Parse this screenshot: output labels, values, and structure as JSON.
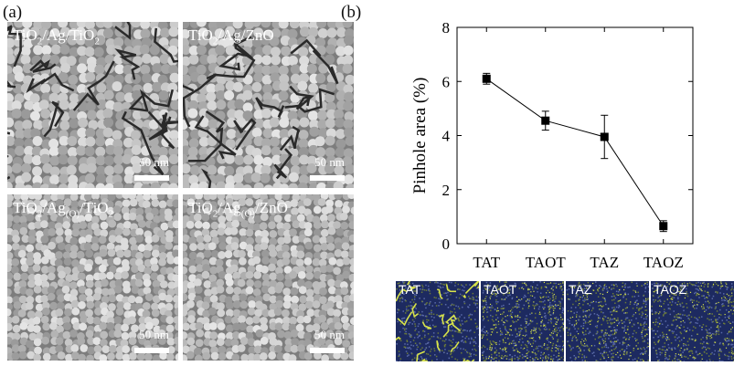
{
  "panels": {
    "a": "(a)",
    "b": "(b)"
  },
  "sem_images": [
    {
      "material": "TiO",
      "sub1": "2",
      "mid": "/Ag",
      "sub2": "",
      "tail": "/TiO",
      "sub3": "2",
      "scale": "50 nm",
      "texture": "cracked"
    },
    {
      "material": "TiO",
      "sub1": "2",
      "mid": "/Ag",
      "sub2": "",
      "tail": "/ZnO",
      "sub3": "",
      "scale": "50 nm",
      "texture": "cracked"
    },
    {
      "material": "TiO",
      "sub1": "2",
      "mid": "/Ag",
      "sub2": "(O)",
      "tail": "/TiO",
      "sub3": "2",
      "scale": "50 nm",
      "texture": "fine"
    },
    {
      "material": "TiO",
      "sub1": "2",
      "mid": "/Ag",
      "sub2": "(O)",
      "tail": "/ZnO",
      "sub3": "",
      "scale": "50 nm",
      "texture": "fine"
    }
  ],
  "chart_data": {
    "type": "line",
    "categories": [
      "TAT",
      "TAOT",
      "TAZ",
      "TAOZ"
    ],
    "values": [
      6.1,
      4.55,
      3.95,
      0.65
    ],
    "errors": [
      0.2,
      0.35,
      0.8,
      0.2
    ],
    "ylabel": "Pinhole area (%)",
    "xlabel": "",
    "ylim": [
      0,
      8
    ],
    "yticks": [
      0,
      2,
      4,
      6,
      8
    ],
    "marker": "square",
    "line_color": "#000000"
  },
  "maps": [
    {
      "label": "TAT",
      "density": "high"
    },
    {
      "label": "TAOT",
      "density": "medium"
    },
    {
      "label": "TAZ",
      "density": "low"
    },
    {
      "label": "TAOZ",
      "density": "low"
    }
  ],
  "colors": {
    "sem_base": "#7d7d7d",
    "map_base": "#1d2a60",
    "map_highlight": "#d8e34a"
  }
}
